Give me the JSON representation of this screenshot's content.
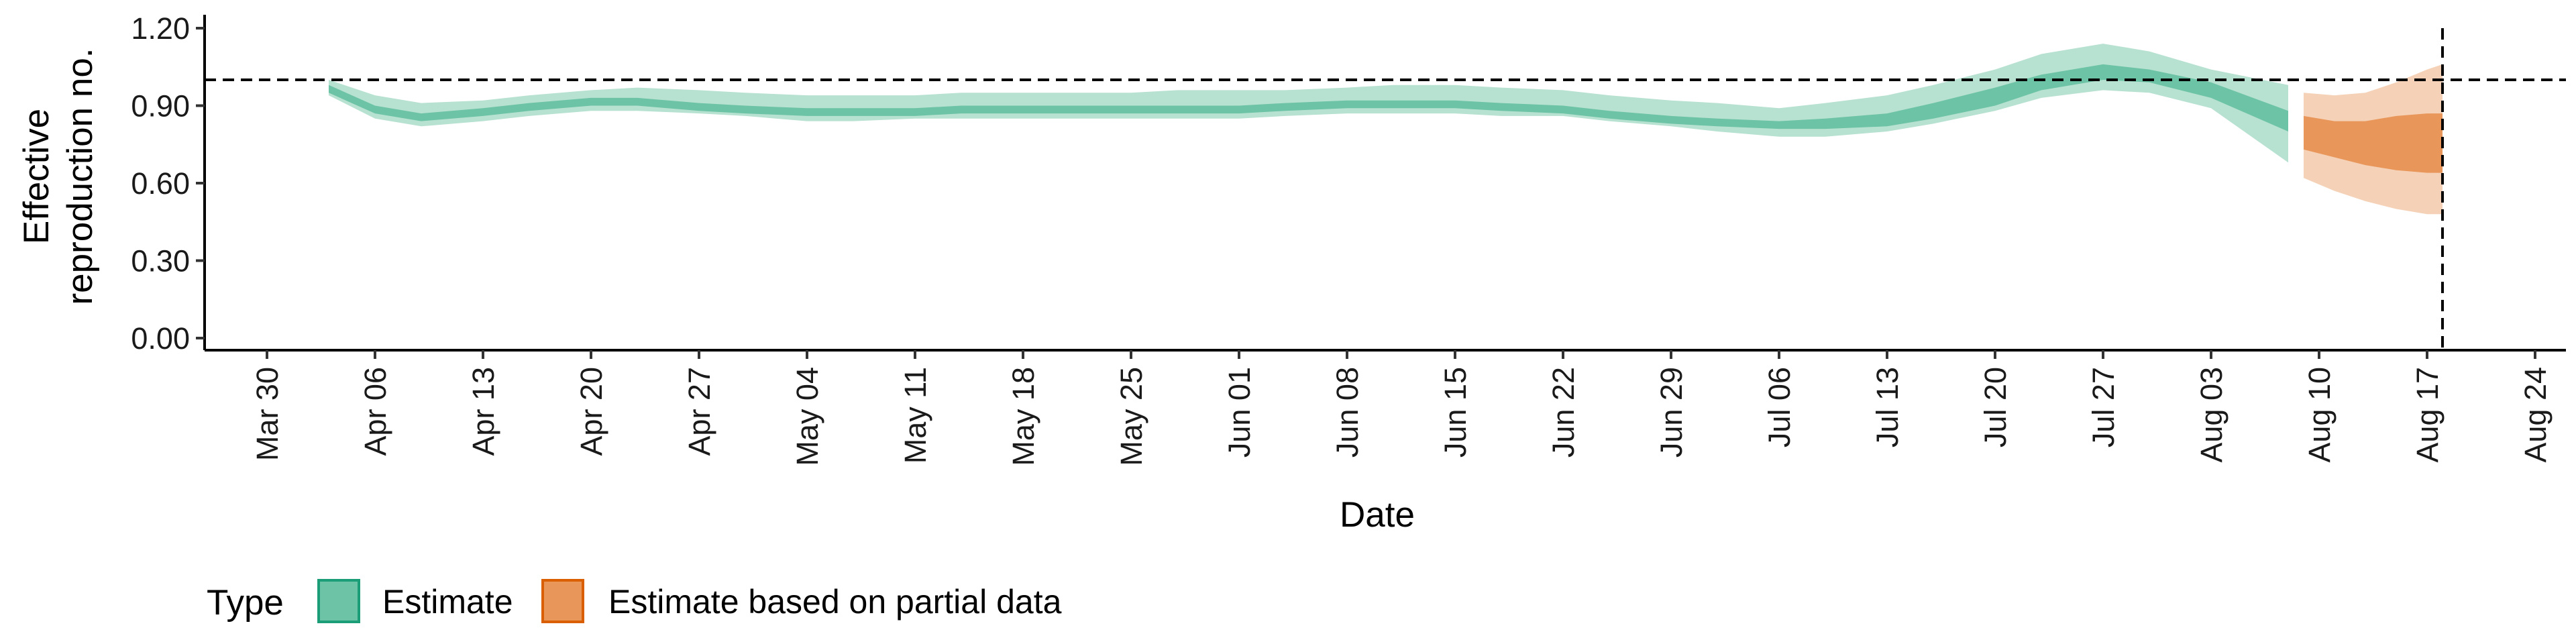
{
  "chart_data": {
    "type": "area",
    "xlabel": "Date",
    "ylabel": [
      "Effective",
      "reproduction no."
    ],
    "ylim": [
      0,
      1.2
    ],
    "yticks": [
      "0.00",
      "0.30",
      "0.60",
      "0.90",
      "1.20"
    ],
    "xticks": [
      "Mar 30",
      "Apr 06",
      "Apr 13",
      "Apr 20",
      "Apr 27",
      "May 04",
      "May 11",
      "May 18",
      "May 25",
      "Jun 01",
      "Jun 08",
      "Jun 15",
      "Jun 22",
      "Jun 29",
      "Jul 06",
      "Jul 13",
      "Jul 20",
      "Jul 27",
      "Aug 03",
      "Aug 10",
      "Aug 17",
      "Aug 24"
    ],
    "reference_line_y": 1.0,
    "reference_line_date": "Aug 18",
    "legend": {
      "title": "Type",
      "position": "bottom-left",
      "entries": [
        {
          "label": "Estimate",
          "fill": "#6cc3a5",
          "stroke": "#1b9e77"
        },
        {
          "label": "Estimate based on partial data",
          "fill": "#e9965b",
          "stroke": "#d95f02"
        }
      ]
    },
    "series": [
      {
        "name": "Estimate",
        "color_inner": "#6cc3a5",
        "color_outer": "#b7e1d0",
        "x": [
          "Apr 03",
          "Apr 06",
          "Apr 09",
          "Apr 13",
          "Apr 16",
          "Apr 20",
          "Apr 23",
          "Apr 27",
          "Apr 30",
          "May 04",
          "May 07",
          "May 11",
          "May 14",
          "May 18",
          "May 21",
          "May 25",
          "May 28",
          "Jun 01",
          "Jun 04",
          "Jun 08",
          "Jun 11",
          "Jun 15",
          "Jun 18",
          "Jun 22",
          "Jun 25",
          "Jun 29",
          "Jul 02",
          "Jul 06",
          "Jul 09",
          "Jul 13",
          "Jul 16",
          "Jul 20",
          "Jul 23",
          "Jul 27",
          "Jul 30",
          "Aug 03",
          "Aug 08"
        ],
        "lower90": [
          0.94,
          0.85,
          0.82,
          0.84,
          0.86,
          0.88,
          0.88,
          0.87,
          0.86,
          0.84,
          0.84,
          0.85,
          0.85,
          0.85,
          0.85,
          0.85,
          0.85,
          0.85,
          0.86,
          0.87,
          0.87,
          0.87,
          0.86,
          0.86,
          0.84,
          0.82,
          0.8,
          0.78,
          0.78,
          0.8,
          0.83,
          0.88,
          0.93,
          0.96,
          0.95,
          0.89,
          0.68
        ],
        "lower50": [
          0.95,
          0.87,
          0.84,
          0.86,
          0.88,
          0.9,
          0.9,
          0.88,
          0.87,
          0.86,
          0.86,
          0.86,
          0.87,
          0.87,
          0.87,
          0.87,
          0.87,
          0.87,
          0.88,
          0.89,
          0.89,
          0.89,
          0.88,
          0.87,
          0.85,
          0.83,
          0.82,
          0.81,
          0.81,
          0.82,
          0.85,
          0.9,
          0.96,
          1.0,
          0.99,
          0.93,
          0.8
        ],
        "upper50": [
          0.98,
          0.9,
          0.87,
          0.89,
          0.91,
          0.93,
          0.93,
          0.91,
          0.9,
          0.89,
          0.89,
          0.89,
          0.9,
          0.9,
          0.9,
          0.9,
          0.9,
          0.9,
          0.91,
          0.92,
          0.92,
          0.92,
          0.91,
          0.9,
          0.88,
          0.86,
          0.85,
          0.84,
          0.85,
          0.87,
          0.91,
          0.97,
          1.02,
          1.06,
          1.04,
          0.99,
          0.88
        ],
        "upper90": [
          1.0,
          0.94,
          0.91,
          0.92,
          0.94,
          0.96,
          0.97,
          0.96,
          0.95,
          0.94,
          0.94,
          0.94,
          0.95,
          0.95,
          0.95,
          0.95,
          0.96,
          0.96,
          0.96,
          0.97,
          0.98,
          0.98,
          0.97,
          0.96,
          0.94,
          0.92,
          0.91,
          0.89,
          0.91,
          0.94,
          0.98,
          1.04,
          1.1,
          1.14,
          1.11,
          1.04,
          0.98
        ]
      },
      {
        "name": "Estimate based on partial data",
        "color_inner": "#e9965b",
        "color_outer": "#f5d2b7",
        "x": [
          "Aug 09",
          "Aug 11",
          "Aug 13",
          "Aug 15",
          "Aug 17",
          "Aug 18"
        ],
        "lower90": [
          0.62,
          0.57,
          0.53,
          0.5,
          0.48,
          0.48
        ],
        "lower50": [
          0.73,
          0.7,
          0.67,
          0.65,
          0.64,
          0.64
        ],
        "upper50": [
          0.86,
          0.84,
          0.84,
          0.86,
          0.87,
          0.87
        ],
        "upper90": [
          0.95,
          0.94,
          0.95,
          0.99,
          1.04,
          1.06
        ]
      }
    ]
  }
}
